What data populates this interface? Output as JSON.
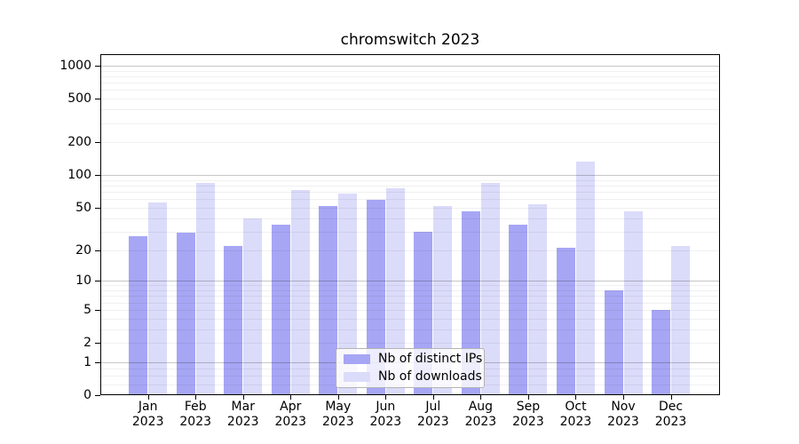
{
  "title": "chromswitch 2023",
  "legend": {
    "items": [
      {
        "label": "Nb of distinct IPs",
        "color": "#a6a6f5"
      },
      {
        "label": "Nb of downloads",
        "color": "#dbdbfa"
      }
    ]
  },
  "axes": {
    "ytick_labels": [
      "0",
      "1",
      "2",
      "5",
      "10",
      "20",
      "50",
      "100",
      "200",
      "500",
      "1000"
    ],
    "xtick_labels": [
      "Jan\n2023",
      "Feb\n2023",
      "Mar\n2023",
      "Apr\n2023",
      "May\n2023",
      "Jun\n2023",
      "Jul\n2023",
      "Aug\n2023",
      "Sep\n2023",
      "Oct\n2023",
      "Nov\n2023",
      "Dec\n2023"
    ]
  },
  "colors": {
    "distinct_ips_bar": "#a6a6f5",
    "downloads_bar": "#dbdbfa",
    "major_gridline": "#c6c6c6",
    "minor_gridline": "#efefef",
    "axis": "#000000",
    "background": "#ffffff"
  },
  "chart_data": {
    "type": "bar",
    "title": "chromswitch 2023",
    "xlabel": "",
    "ylabel": "",
    "yscale": "symlog (position ~ log(1+value))",
    "ylim": [
      0,
      1200
    ],
    "yticks": [
      0,
      1,
      2,
      5,
      10,
      20,
      50,
      100,
      200,
      500,
      1000
    ],
    "grid": true,
    "legend_position": "lower center inside plot",
    "categories": [
      "Jan 2023",
      "Feb 2023",
      "Mar 2023",
      "Apr 2023",
      "May 2023",
      "Jun 2023",
      "Jul 2023",
      "Aug 2023",
      "Sep 2023",
      "Oct 2023",
      "Nov 2023",
      "Dec 2023"
    ],
    "series": [
      {
        "name": "Nb of distinct IPs",
        "color": "#a6a6f5",
        "values": [
          27,
          29,
          22,
          35,
          52,
          59,
          30,
          46,
          35,
          21,
          8,
          5
        ]
      },
      {
        "name": "Nb of downloads",
        "color": "#dbdbfa",
        "values": [
          56,
          85,
          40,
          73,
          67,
          75,
          52,
          85,
          54,
          134,
          46,
          22
        ]
      }
    ]
  }
}
